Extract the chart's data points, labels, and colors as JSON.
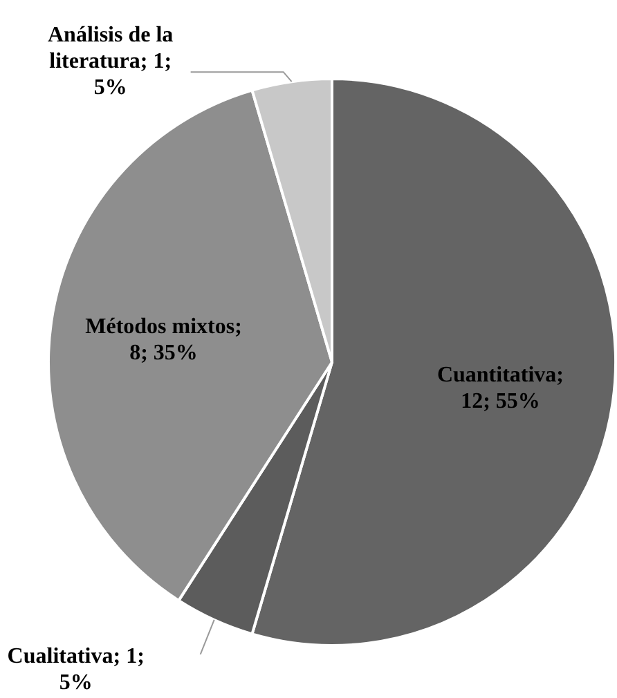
{
  "chart_data": {
    "type": "pie",
    "categories": [
      "Cuantitativa",
      "Cualitativa",
      "Métodos mixtos",
      "Análisis de la literatura"
    ],
    "values": [
      12,
      1,
      8,
      1
    ],
    "value_labels": [
      "; 12; 55%",
      "; 1; 5%",
      "; 8; 35%",
      "; 1; 5%"
    ],
    "colors": [
      "#646464",
      "#5c5c5c",
      "#8e8e8e",
      "#c8c8c8"
    ]
  }
}
